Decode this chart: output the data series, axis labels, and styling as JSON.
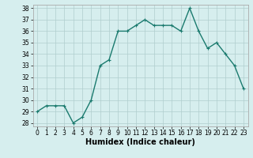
{
  "x": [
    0,
    1,
    2,
    3,
    4,
    5,
    6,
    7,
    8,
    9,
    10,
    11,
    12,
    13,
    14,
    15,
    16,
    17,
    18,
    19,
    20,
    21,
    22,
    23
  ],
  "y": [
    29,
    29.5,
    29.5,
    29.5,
    28,
    28.5,
    30,
    33,
    33.5,
    36,
    36,
    36.5,
    37,
    36.5,
    36.5,
    36.5,
    36,
    38,
    36,
    34.5,
    35,
    34,
    33,
    31
  ],
  "line_color": "#1a7a6e",
  "marker": "+",
  "marker_color": "#1a7a6e",
  "bg_color": "#d6eeee",
  "grid_color": "#b0cece",
  "xlabel": "Humidex (Indice chaleur)",
  "ylim": [
    28,
    38
  ],
  "xlim_min": -0.5,
  "xlim_max": 23.5,
  "yticks": [
    28,
    29,
    30,
    31,
    32,
    33,
    34,
    35,
    36,
    37,
    38
  ],
  "xticks": [
    0,
    1,
    2,
    3,
    4,
    5,
    6,
    7,
    8,
    9,
    10,
    11,
    12,
    13,
    14,
    15,
    16,
    17,
    18,
    19,
    20,
    21,
    22,
    23
  ],
  "xtick_labels": [
    "0",
    "1",
    "2",
    "3",
    "4",
    "5",
    "6",
    "7",
    "8",
    "9",
    "10",
    "11",
    "12",
    "13",
    "14",
    "15",
    "16",
    "17",
    "18",
    "19",
    "20",
    "21",
    "22",
    "23"
  ],
  "tick_fontsize": 5.5,
  "xlabel_fontsize": 7,
  "line_width": 1.0,
  "marker_size": 3,
  "marker_edge_width": 0.8
}
